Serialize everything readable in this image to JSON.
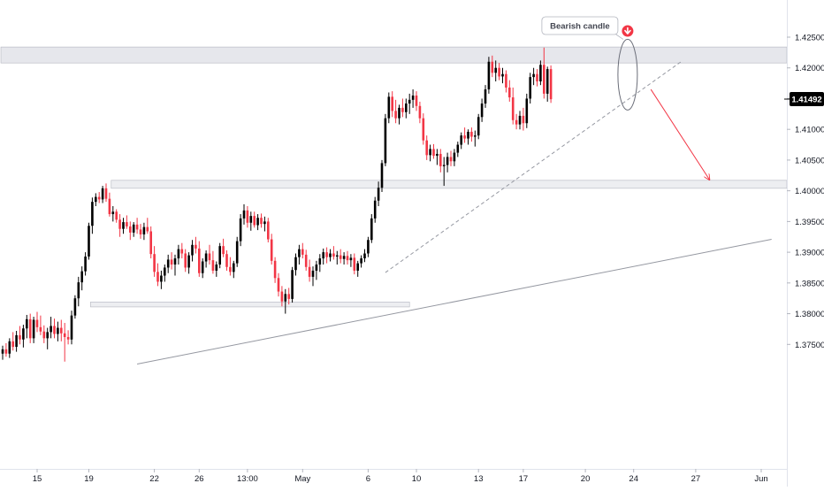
{
  "chart_data": {
    "type": "candlestick",
    "title": "",
    "xlabel": "",
    "ylabel": "",
    "ylim": [
      1.3715,
      1.4295
    ],
    "y_ticks": [
      "1.42500",
      "1.42000",
      "1.41500",
      "1.41000",
      "1.40500",
      "1.40000",
      "1.39500",
      "1.39000",
      "1.38500",
      "1.38000",
      "1.37500"
    ],
    "y_tick_values": [
      1.425,
      1.42,
      1.415,
      1.41,
      1.405,
      1.4,
      1.395,
      1.39,
      1.385,
      1.38,
      1.375
    ],
    "x_ticks": [
      "15",
      "19",
      "22",
      "26",
      "13:00",
      "May",
      "6",
      "10",
      "13",
      "17",
      "20",
      "24",
      "27",
      "Jun"
    ],
    "x_tick_bar_index": [
      10,
      25,
      44,
      57,
      71,
      87,
      106,
      120,
      138,
      151,
      169,
      183,
      201,
      220
    ],
    "current_price_label": "1.41492",
    "current_price": 1.41492,
    "annotation": {
      "text": "Bearish candle"
    },
    "colors": {
      "up": "#000000",
      "down": "#f23645",
      "zone": "#d1d4dc",
      "trend": "#9598a1",
      "arrow": "#f23645",
      "price_tag": "#000000"
    },
    "zones": [
      {
        "name": "resistance",
        "y_low": 1.4208,
        "y_high": 1.4234,
        "bar_start": 0
      },
      {
        "name": "support-upper",
        "y_low": 1.4004,
        "y_high": 1.4017,
        "bar_start": 32
      },
      {
        "name": "support-lower",
        "y_low": 1.3811,
        "y_high": 1.3819,
        "bar_start": 26,
        "bar_end": 118
      }
    ],
    "trendlines": [
      {
        "name": "dashed-trendline",
        "style": "dashed",
        "from": {
          "bar": 111,
          "y": 1.3867
        },
        "to": {
          "bar": 197,
          "y": 1.4211
        }
      },
      {
        "name": "long-trendline",
        "style": "solid",
        "from": {
          "bar": 39,
          "y": 1.3718
        },
        "to": {
          "bar": 223,
          "y": 1.3921
        }
      }
    ],
    "projection_arrow": {
      "from": {
        "bar": 188,
        "y": 1.4165
      },
      "to": {
        "bar": 205,
        "y": 1.4018
      }
    },
    "highlight_ellipse": {
      "bar": 181,
      "y_low": 1.4143,
      "y_high": 1.4235
    },
    "down_marker": {
      "bar": 181,
      "y": 1.426
    },
    "ohlc": [
      [
        1.3735,
        1.3748,
        1.3725,
        1.3742
      ],
      [
        1.3742,
        1.3752,
        1.373,
        1.3735
      ],
      [
        1.3735,
        1.376,
        1.3728,
        1.3755
      ],
      [
        1.3755,
        1.377,
        1.374,
        1.3746
      ],
      [
        1.3746,
        1.3772,
        1.3738,
        1.3765
      ],
      [
        1.3765,
        1.378,
        1.375,
        1.3758
      ],
      [
        1.3758,
        1.3782,
        1.3745,
        1.3776
      ],
      [
        1.3776,
        1.3798,
        1.376,
        1.3791
      ],
      [
        1.3791,
        1.38,
        1.3752,
        1.376
      ],
      [
        1.376,
        1.3795,
        1.3752,
        1.379
      ],
      [
        1.379,
        1.3803,
        1.377,
        1.3778
      ],
      [
        1.3778,
        1.3797,
        1.3765,
        1.3771
      ],
      [
        1.3771,
        1.3781,
        1.3752,
        1.376
      ],
      [
        1.376,
        1.3777,
        1.3742,
        1.377
      ],
      [
        1.377,
        1.3795,
        1.376,
        1.378
      ],
      [
        1.378,
        1.3792,
        1.376,
        1.3767
      ],
      [
        1.3767,
        1.3787,
        1.3755,
        1.3777
      ],
      [
        1.3777,
        1.379,
        1.3755,
        1.3768
      ],
      [
        1.3768,
        1.3785,
        1.3722,
        1.3762
      ],
      [
        1.3762,
        1.3773,
        1.375,
        1.3758
      ],
      [
        1.3758,
        1.3805,
        1.375,
        1.3797
      ],
      [
        1.3797,
        1.383,
        1.3792,
        1.3825
      ],
      [
        1.3825,
        1.386,
        1.3812,
        1.3851
      ],
      [
        1.3851,
        1.3877,
        1.3838,
        1.3869
      ],
      [
        1.3869,
        1.39,
        1.3862,
        1.3893
      ],
      [
        1.3893,
        1.3948,
        1.3888,
        1.3943
      ],
      [
        1.3943,
        1.3989,
        1.393,
        1.3982
      ],
      [
        1.3982,
        1.3996,
        1.3975,
        1.399
      ],
      [
        1.399,
        1.3998,
        1.398,
        1.3986
      ],
      [
        1.3986,
        1.4008,
        1.398,
        1.4004
      ],
      [
        1.4004,
        1.4012,
        1.3982,
        1.3987
      ],
      [
        1.3987,
        1.3997,
        1.3958,
        1.3962
      ],
      [
        1.3962,
        1.3975,
        1.395,
        1.3966
      ],
      [
        1.3966,
        1.397,
        1.3948,
        1.3953
      ],
      [
        1.3953,
        1.3962,
        1.3925,
        1.3938
      ],
      [
        1.3938,
        1.3956,
        1.393,
        1.3949
      ],
      [
        1.3949,
        1.396,
        1.3938,
        1.3942
      ],
      [
        1.3942,
        1.395,
        1.392,
        1.3932
      ],
      [
        1.3932,
        1.3949,
        1.3925,
        1.3945
      ],
      [
        1.3945,
        1.3956,
        1.393,
        1.3937
      ],
      [
        1.3937,
        1.3946,
        1.3922,
        1.3929
      ],
      [
        1.3929,
        1.3948,
        1.392,
        1.3941
      ],
      [
        1.3941,
        1.3956,
        1.393,
        1.3934
      ],
      [
        1.3934,
        1.3942,
        1.389,
        1.3897
      ],
      [
        1.3897,
        1.391,
        1.386,
        1.3868
      ],
      [
        1.3868,
        1.3882,
        1.3845,
        1.3852
      ],
      [
        1.3852,
        1.387,
        1.384,
        1.3862
      ],
      [
        1.3862,
        1.388,
        1.3852,
        1.3875
      ],
      [
        1.3875,
        1.3896,
        1.3866,
        1.3888
      ],
      [
        1.3888,
        1.39,
        1.3872,
        1.388
      ],
      [
        1.388,
        1.3896,
        1.3862,
        1.389
      ],
      [
        1.389,
        1.3912,
        1.388,
        1.3905
      ],
      [
        1.3905,
        1.3915,
        1.389,
        1.3898
      ],
      [
        1.3898,
        1.3905,
        1.3868,
        1.3875
      ],
      [
        1.3875,
        1.39,
        1.3865,
        1.3895
      ],
      [
        1.3895,
        1.392,
        1.3885,
        1.3912
      ],
      [
        1.3912,
        1.3925,
        1.3898,
        1.3906
      ],
      [
        1.3906,
        1.3918,
        1.386,
        1.3866
      ],
      [
        1.3866,
        1.389,
        1.3858,
        1.3885
      ],
      [
        1.3885,
        1.3903,
        1.3875,
        1.3898
      ],
      [
        1.3898,
        1.3912,
        1.388,
        1.3887
      ],
      [
        1.3887,
        1.3902,
        1.3865,
        1.387
      ],
      [
        1.387,
        1.3885,
        1.386,
        1.388
      ],
      [
        1.388,
        1.3915,
        1.3874,
        1.391
      ],
      [
        1.391,
        1.3922,
        1.3892,
        1.3897
      ],
      [
        1.3897,
        1.3903,
        1.387,
        1.3876
      ],
      [
        1.3876,
        1.3892,
        1.3862,
        1.3868
      ],
      [
        1.3868,
        1.3886,
        1.3858,
        1.3882
      ],
      [
        1.3882,
        1.3925,
        1.3876,
        1.3918
      ],
      [
        1.3918,
        1.3962,
        1.391,
        1.3955
      ],
      [
        1.3955,
        1.3978,
        1.3945,
        1.3968
      ],
      [
        1.3968,
        1.3975,
        1.394,
        1.3948
      ],
      [
        1.3948,
        1.3966,
        1.3935,
        1.3959
      ],
      [
        1.3959,
        1.3966,
        1.394,
        1.3944
      ],
      [
        1.3944,
        1.3962,
        1.3936,
        1.3956
      ],
      [
        1.3956,
        1.3963,
        1.394,
        1.3946
      ],
      [
        1.3946,
        1.3958,
        1.3934,
        1.395
      ],
      [
        1.395,
        1.3956,
        1.3916,
        1.3921
      ],
      [
        1.3921,
        1.393,
        1.388,
        1.3886
      ],
      [
        1.3886,
        1.3892,
        1.385,
        1.3858
      ],
      [
        1.3858,
        1.3866,
        1.3828,
        1.3836
      ],
      [
        1.3836,
        1.3845,
        1.3812,
        1.382
      ],
      [
        1.382,
        1.384,
        1.38,
        1.3832
      ],
      [
        1.3832,
        1.3842,
        1.3815,
        1.3824
      ],
      [
        1.3824,
        1.3876,
        1.3818,
        1.3871
      ],
      [
        1.3871,
        1.3898,
        1.3862,
        1.3892
      ],
      [
        1.3892,
        1.3912,
        1.388,
        1.3905
      ],
      [
        1.3905,
        1.3915,
        1.389,
        1.3896
      ],
      [
        1.3896,
        1.3904,
        1.387,
        1.3876
      ],
      [
        1.3876,
        1.3888,
        1.3852,
        1.386
      ],
      [
        1.386,
        1.3877,
        1.3845,
        1.387
      ],
      [
        1.387,
        1.3886,
        1.3855,
        1.388
      ],
      [
        1.388,
        1.3897,
        1.3868,
        1.389
      ],
      [
        1.389,
        1.3906,
        1.388,
        1.39
      ],
      [
        1.39,
        1.3908,
        1.3882,
        1.3892
      ],
      [
        1.3892,
        1.3905,
        1.3885,
        1.3898
      ],
      [
        1.3898,
        1.391,
        1.3888,
        1.3893
      ],
      [
        1.3893,
        1.3902,
        1.388,
        1.3895
      ],
      [
        1.3895,
        1.3905,
        1.3882,
        1.3889
      ],
      [
        1.3889,
        1.39,
        1.388,
        1.3894
      ],
      [
        1.3894,
        1.3902,
        1.388,
        1.3887
      ],
      [
        1.3887,
        1.3897,
        1.3876,
        1.3891
      ],
      [
        1.3891,
        1.3898,
        1.3864,
        1.387
      ],
      [
        1.387,
        1.3886,
        1.386,
        1.3882
      ],
      [
        1.3882,
        1.3895,
        1.3875,
        1.389
      ],
      [
        1.389,
        1.3905,
        1.3884,
        1.3898
      ],
      [
        1.3898,
        1.3925,
        1.3892,
        1.392
      ],
      [
        1.392,
        1.3962,
        1.3915,
        1.3955
      ],
      [
        1.3955,
        1.399,
        1.3948,
        1.3984
      ],
      [
        1.3984,
        1.4015,
        1.3975,
        1.4005
      ],
      [
        1.4005,
        1.405,
        1.3998,
        1.4045
      ],
      [
        1.4045,
        1.4125,
        1.404,
        1.4118
      ],
      [
        1.4118,
        1.416,
        1.411,
        1.4153
      ],
      [
        1.4153,
        1.4162,
        1.412,
        1.413
      ],
      [
        1.413,
        1.4148,
        1.411,
        1.4118
      ],
      [
        1.4118,
        1.414,
        1.4108,
        1.4135
      ],
      [
        1.4135,
        1.415,
        1.412,
        1.4128
      ],
      [
        1.4128,
        1.415,
        1.4118,
        1.4142
      ],
      [
        1.4142,
        1.4158,
        1.4125,
        1.4148
      ],
      [
        1.4148,
        1.4165,
        1.4135,
        1.4155
      ],
      [
        1.4155,
        1.4162,
        1.413,
        1.4138
      ],
      [
        1.4138,
        1.4145,
        1.411,
        1.4118
      ],
      [
        1.4118,
        1.4126,
        1.4075,
        1.4082
      ],
      [
        1.4082,
        1.409,
        1.405,
        1.4058
      ],
      [
        1.4058,
        1.4075,
        1.4048,
        1.4068
      ],
      [
        1.4068,
        1.4076,
        1.4052,
        1.4057
      ],
      [
        1.4057,
        1.4068,
        1.4042,
        1.406
      ],
      [
        1.406,
        1.4068,
        1.403,
        1.404
      ],
      [
        1.404,
        1.4055,
        1.4008,
        1.4042
      ],
      [
        1.4042,
        1.4062,
        1.403,
        1.4055
      ],
      [
        1.4055,
        1.4065,
        1.404,
        1.4048
      ],
      [
        1.4048,
        1.4068,
        1.404,
        1.4062
      ],
      [
        1.4062,
        1.408,
        1.4055,
        1.4075
      ],
      [
        1.4075,
        1.4095,
        1.4068,
        1.409
      ],
      [
        1.409,
        1.4103,
        1.4078,
        1.4085
      ],
      [
        1.4085,
        1.41,
        1.4075,
        1.4096
      ],
      [
        1.4096,
        1.4103,
        1.408,
        1.4088
      ],
      [
        1.4088,
        1.4098,
        1.4072,
        1.409
      ],
      [
        1.409,
        1.4125,
        1.4084,
        1.412
      ],
      [
        1.412,
        1.415,
        1.4112,
        1.4142
      ],
      [
        1.4142,
        1.4172,
        1.4135,
        1.4165
      ],
      [
        1.4165,
        1.4218,
        1.4158,
        1.421
      ],
      [
        1.421,
        1.422,
        1.4185,
        1.4192
      ],
      [
        1.4192,
        1.4212,
        1.4178,
        1.42
      ],
      [
        1.42,
        1.4208,
        1.418,
        1.4186
      ],
      [
        1.4186,
        1.42,
        1.4175,
        1.419
      ],
      [
        1.419,
        1.4196,
        1.416,
        1.4168
      ],
      [
        1.4168,
        1.418,
        1.4145,
        1.4152
      ],
      [
        1.4152,
        1.4168,
        1.4108,
        1.4115
      ],
      [
        1.4115,
        1.4125,
        1.41,
        1.4108
      ],
      [
        1.4108,
        1.413,
        1.41,
        1.4122
      ],
      [
        1.4122,
        1.4135,
        1.4098,
        1.411
      ],
      [
        1.411,
        1.4158,
        1.4102,
        1.415
      ],
      [
        1.415,
        1.4192,
        1.4142,
        1.4185
      ],
      [
        1.4185,
        1.42,
        1.4172,
        1.419
      ],
      [
        1.419,
        1.4198,
        1.417,
        1.4178
      ],
      [
        1.4178,
        1.4212,
        1.4172,
        1.4205
      ],
      [
        1.4205,
        1.4233,
        1.415,
        1.4158
      ],
      [
        1.4158,
        1.4202,
        1.4145,
        1.4198
      ],
      [
        1.4198,
        1.4204,
        1.4143,
        1.4149
      ]
    ]
  }
}
